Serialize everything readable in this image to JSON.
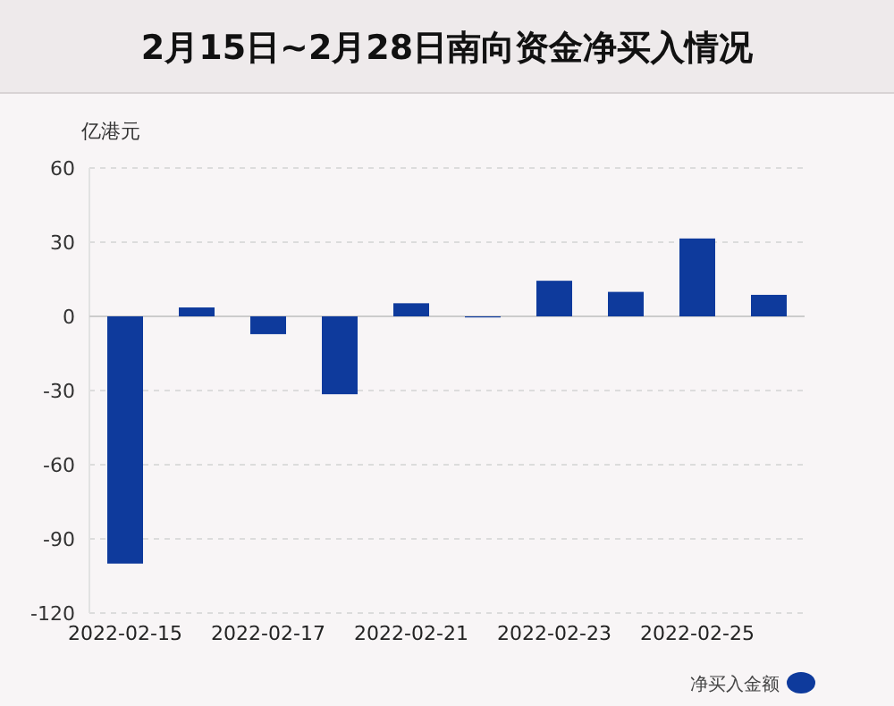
{
  "chart_data": {
    "type": "bar",
    "title": "2月15日~2月28日南向资金净买入情况",
    "ylabel": "亿港元",
    "categories": [
      "2022-02-15",
      null,
      "2022-02-17",
      null,
      "2022-02-21",
      null,
      "2022-02-23",
      null,
      "2022-02-25",
      null
    ],
    "series": [
      {
        "name": "净买入金额",
        "color": "#0e3a9c",
        "values": [
          -100,
          3.6,
          -7.2,
          -31.5,
          5.3,
          -0.3,
          14.4,
          9.9,
          31.5,
          8.7
        ]
      }
    ],
    "ylim": [
      -120,
      60
    ],
    "yticks": [
      -120,
      -90,
      -60,
      -30,
      0,
      30,
      60
    ],
    "grid": "y",
    "legend": "bottom right"
  }
}
